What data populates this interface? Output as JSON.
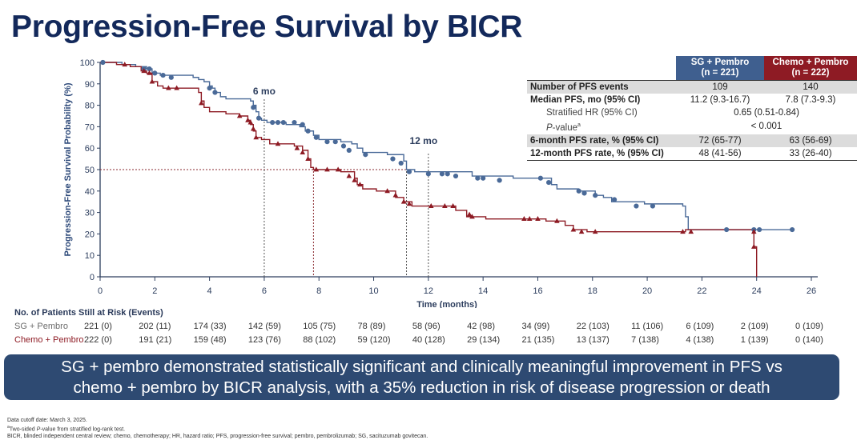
{
  "title": "Progression-Free Survival by BICR",
  "colors": {
    "title": "#13295b",
    "sg_pembro": "#4a6a98",
    "chemo_pembro": "#8e1b24",
    "callout_bg": "#2e4a72"
  },
  "chart_data": {
    "type": "line",
    "subtype": "kaplan-meier",
    "xlabel": "Time (months)",
    "ylabel": "Progression-Free Survival Probability (%)",
    "xlim": [
      0,
      26
    ],
    "ylim": [
      0,
      100
    ],
    "x_ticks": [
      0,
      2,
      4,
      6,
      8,
      10,
      12,
      14,
      16,
      18,
      20,
      22,
      24,
      26
    ],
    "y_ticks": [
      0,
      10,
      20,
      30,
      40,
      50,
      60,
      70,
      80,
      90,
      100
    ],
    "grid": false,
    "annotations": [
      {
        "label": "6 mo",
        "x": 6
      },
      {
        "label": "12 mo",
        "x": 12
      }
    ],
    "reference_lines": {
      "horizontal_y": 50,
      "vertical_x": [
        6,
        7.8,
        11.2,
        12
      ]
    },
    "series": [
      {
        "name": "SG + Pembro",
        "marker": "circle",
        "steps": [
          [
            0,
            100
          ],
          [
            0.8,
            99
          ],
          [
            1.3,
            98
          ],
          [
            1.7,
            97
          ],
          [
            1.9,
            95
          ],
          [
            2.2,
            94
          ],
          [
            3.4,
            93
          ],
          [
            3.6,
            92
          ],
          [
            3.8,
            91
          ],
          [
            4.0,
            89
          ],
          [
            4.1,
            88
          ],
          [
            4.2,
            86
          ],
          [
            4.4,
            84
          ],
          [
            4.6,
            83
          ],
          [
            5.5,
            82
          ],
          [
            5.6,
            80
          ],
          [
            5.7,
            77
          ],
          [
            5.8,
            74
          ],
          [
            5.9,
            73
          ],
          [
            6.1,
            72
          ],
          [
            6.6,
            72
          ],
          [
            6.8,
            71
          ],
          [
            7.3,
            70
          ],
          [
            7.5,
            68
          ],
          [
            7.8,
            66
          ],
          [
            8.0,
            64
          ],
          [
            8.8,
            63
          ],
          [
            9.2,
            62
          ],
          [
            9.4,
            60
          ],
          [
            9.6,
            58
          ],
          [
            10.5,
            57
          ],
          [
            11.1,
            54
          ],
          [
            11.2,
            50
          ],
          [
            11.5,
            49
          ],
          [
            12.6,
            49
          ],
          [
            13.6,
            47
          ],
          [
            15.1,
            46
          ],
          [
            16.0,
            46
          ],
          [
            16.5,
            43
          ],
          [
            16.7,
            41
          ],
          [
            17.5,
            40
          ],
          [
            18.1,
            38
          ],
          [
            18.4,
            37
          ],
          [
            18.7,
            35
          ],
          [
            19.9,
            34
          ],
          [
            21.3,
            33
          ],
          [
            21.4,
            28
          ],
          [
            21.5,
            22
          ],
          [
            25.3,
            22
          ]
        ],
        "censored": [
          [
            0.1,
            100
          ],
          [
            1.6,
            97
          ],
          [
            1.8,
            97
          ],
          [
            2.0,
            95
          ],
          [
            2.3,
            94
          ],
          [
            2.6,
            93
          ],
          [
            4.0,
            88
          ],
          [
            4.2,
            86
          ],
          [
            5.6,
            79
          ],
          [
            5.8,
            74
          ],
          [
            6.3,
            72
          ],
          [
            6.5,
            72
          ],
          [
            6.7,
            72
          ],
          [
            7.1,
            72
          ],
          [
            7.4,
            71
          ],
          [
            7.6,
            68
          ],
          [
            7.9,
            65
          ],
          [
            8.3,
            63
          ],
          [
            8.6,
            63
          ],
          [
            8.9,
            61
          ],
          [
            9.1,
            59
          ],
          [
            9.7,
            57
          ],
          [
            10.7,
            55
          ],
          [
            11.0,
            53
          ],
          [
            11.3,
            49
          ],
          [
            12.0,
            48
          ],
          [
            12.5,
            48
          ],
          [
            12.7,
            48
          ],
          [
            13.0,
            47
          ],
          [
            13.8,
            46
          ],
          [
            14.0,
            46
          ],
          [
            14.6,
            45
          ],
          [
            16.1,
            46
          ],
          [
            16.4,
            44
          ],
          [
            17.5,
            40
          ],
          [
            17.7,
            39
          ],
          [
            18.1,
            38
          ],
          [
            18.8,
            36
          ],
          [
            19.6,
            33
          ],
          [
            20.2,
            33
          ],
          [
            22.9,
            22
          ],
          [
            23.9,
            22
          ],
          [
            24.1,
            22
          ],
          [
            25.3,
            22
          ]
        ]
      },
      {
        "name": "Chemo + Pembro",
        "marker": "triangle",
        "steps": [
          [
            0,
            100
          ],
          [
            0.6,
            99
          ],
          [
            1.1,
            98
          ],
          [
            1.5,
            96
          ],
          [
            1.7,
            95
          ],
          [
            1.9,
            91
          ],
          [
            2.1,
            89
          ],
          [
            2.3,
            88
          ],
          [
            3.6,
            86
          ],
          [
            3.7,
            82
          ],
          [
            3.8,
            79
          ],
          [
            4.0,
            77
          ],
          [
            4.6,
            76
          ],
          [
            5.1,
            75
          ],
          [
            5.4,
            73
          ],
          [
            5.5,
            71
          ],
          [
            5.6,
            68
          ],
          [
            5.7,
            65
          ],
          [
            5.9,
            64
          ],
          [
            6.2,
            62
          ],
          [
            7.1,
            61
          ],
          [
            7.4,
            59
          ],
          [
            7.6,
            55
          ],
          [
            7.7,
            51
          ],
          [
            7.8,
            50
          ],
          [
            8.3,
            50
          ],
          [
            8.8,
            49
          ],
          [
            9.3,
            46
          ],
          [
            9.4,
            43
          ],
          [
            9.6,
            41
          ],
          [
            10.1,
            40
          ],
          [
            10.8,
            37
          ],
          [
            11.1,
            35
          ],
          [
            11.4,
            33
          ],
          [
            12.5,
            33
          ],
          [
            13.0,
            31
          ],
          [
            13.4,
            28
          ],
          [
            14.1,
            27
          ],
          [
            16.3,
            26
          ],
          [
            17.0,
            24
          ],
          [
            17.3,
            22
          ],
          [
            17.8,
            21
          ],
          [
            21.4,
            22
          ],
          [
            23.9,
            21
          ],
          [
            23.9,
            14
          ],
          [
            24.0,
            13
          ],
          [
            24.0,
            0
          ]
        ],
        "censored": [
          [
            0.9,
            99
          ],
          [
            1.6,
            96
          ],
          [
            1.8,
            95
          ],
          [
            1.9,
            91
          ],
          [
            2.5,
            88
          ],
          [
            2.8,
            88
          ],
          [
            3.7,
            81
          ],
          [
            5.1,
            75
          ],
          [
            5.4,
            73
          ],
          [
            5.5,
            72
          ],
          [
            5.6,
            69
          ],
          [
            5.7,
            65
          ],
          [
            6.5,
            62
          ],
          [
            7.2,
            60
          ],
          [
            7.4,
            58
          ],
          [
            7.6,
            55
          ],
          [
            7.9,
            50
          ],
          [
            8.3,
            50
          ],
          [
            8.7,
            50
          ],
          [
            9.1,
            47
          ],
          [
            9.3,
            45
          ],
          [
            9.5,
            43
          ],
          [
            10.5,
            40
          ],
          [
            10.8,
            38
          ],
          [
            11.1,
            35
          ],
          [
            11.3,
            34
          ],
          [
            12.1,
            33
          ],
          [
            12.6,
            33
          ],
          [
            12.9,
            33
          ],
          [
            13.5,
            29
          ],
          [
            13.6,
            28
          ],
          [
            15.5,
            27
          ],
          [
            15.7,
            27
          ],
          [
            16.0,
            27
          ],
          [
            16.7,
            26
          ],
          [
            17.3,
            22
          ],
          [
            17.6,
            21
          ],
          [
            18.1,
            21
          ],
          [
            21.3,
            21
          ],
          [
            21.6,
            21
          ],
          [
            23.9,
            21
          ],
          [
            23.9,
            14
          ]
        ]
      }
    ]
  },
  "stats_table": {
    "columns": [
      {
        "line1": "SG + Pembro",
        "line2": "(n = 221)"
      },
      {
        "line1": "Chemo + Pembro",
        "line2": "(n = 222)"
      }
    ],
    "rows": [
      {
        "label": "Number of PFS events",
        "sg": "109",
        "chemo": "140"
      },
      {
        "label": "Median PFS, mo (95% CI)",
        "sg": "11.2 (9.3-16.7)",
        "chemo": "7.8 (7.3-9.3)"
      },
      {
        "label": "Stratified HR (95% CI)",
        "combined": "0.65 (0.51-0.84)"
      },
      {
        "label_italic": "P",
        "label_rest": "-value",
        "label_sup": "a",
        "combined": "< 0.001"
      },
      {
        "label": "6-month PFS rate, % (95% CI)",
        "sg": "72 (65-77)",
        "chemo": "63 (56-69)"
      },
      {
        "label": "12-month PFS rate, % (95% CI)",
        "sg": "48 (41-56)",
        "chemo": "33 (26-40)"
      }
    ]
  },
  "at_risk": {
    "title": "No. of Patients Still at Risk (Events)",
    "times": [
      0,
      2,
      4,
      6,
      8,
      10,
      12,
      14,
      16,
      18,
      20,
      22,
      24,
      26
    ],
    "rows": [
      {
        "label": "SG + Pembro",
        "values": [
          "221 (0)",
          "202 (11)",
          "174 (33)",
          "142 (59)",
          "105 (75)",
          "78 (89)",
          "58 (96)",
          "42 (98)",
          "34 (99)",
          "22 (103)",
          "11 (106)",
          "6 (109)",
          "2 (109)",
          "0 (109)"
        ]
      },
      {
        "label": "Chemo + Pembro",
        "values": [
          "222 (0)",
          "191 (21)",
          "159 (48)",
          "123 (76)",
          "88 (102)",
          "59 (120)",
          "40 (128)",
          "29 (134)",
          "21 (135)",
          "13 (137)",
          "7 (138)",
          "4 (138)",
          "1 (139)",
          "0 (140)"
        ]
      }
    ]
  },
  "callout": {
    "line1": "SG + pembro demonstrated statistically significant and clinically meaningful improvement in PFS vs",
    "line2": "chemo + pembro by BICR analysis, with a 35% reduction in risk of disease progression or death"
  },
  "footnotes": {
    "line1": "Data cutoff date: March 3, 2025.",
    "line2_sup": "a",
    "line2_pre": "Two-sided ",
    "line2_italic": "P",
    "line2_post": "-value from stratified log-rank test.",
    "line3": "BICR, blinded independent central review; chemo, chemotherapy; HR, hazard ratio; PFS, progression-free survival; pembro, pembrolizumab; SG, sacituzumab govitecan."
  }
}
